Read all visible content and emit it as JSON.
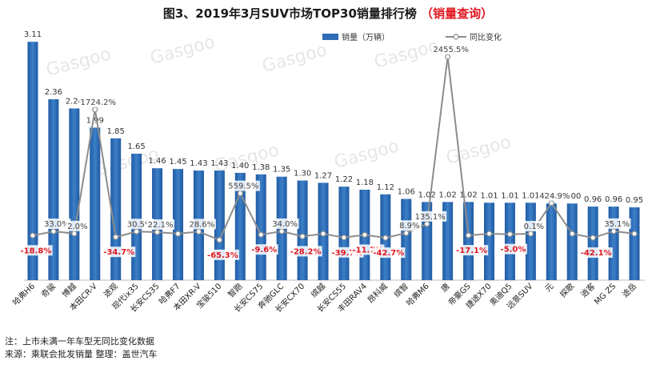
{
  "chart_data": {
    "type": "bar",
    "title": "图3、2019年3月SUV市场TOP30销量排行榜",
    "title_suffix": "（销量查询）",
    "title_color": "#1a1a1a",
    "title_suffix_color": "#e0161f",
    "legend": {
      "bar_label": "销量（万辆）",
      "line_label": "同比变化",
      "placement": "top-right"
    },
    "categories": [
      "哈弗H6",
      "奇骏",
      "博越",
      "本田CR-V",
      "途观",
      "现代ix35",
      "长安CS35",
      "哈弗F7",
      "本田XR-V",
      "宝骏510",
      "智跑",
      "长安CS75",
      "奔驰GLC",
      "长安CX70",
      "缤越",
      "长安CS55",
      "丰田RAV4",
      "昂科威",
      "缤智",
      "哈弗M6",
      "唐",
      "帝豪GS",
      "捷途X70",
      "奥迪Q5",
      "远景SUV",
      "元",
      "探歌",
      "逍客",
      "MG ZS",
      "途岳"
    ],
    "series": [
      {
        "name": "销量（万辆）",
        "values": [
          3.11,
          2.36,
          2.24,
          1.99,
          1.85,
          1.65,
          1.46,
          1.45,
          1.43,
          1.43,
          1.4,
          1.38,
          1.35,
          1.3,
          1.27,
          1.22,
          1.18,
          1.12,
          1.06,
          1.02,
          1.02,
          1.02,
          1.01,
          1.01,
          1.01,
          1.0,
          1.0,
          0.96,
          0.96,
          0.95
        ]
      },
      {
        "name": "同比变化",
        "values": [
          -18.8,
          33.0,
          2.0,
          1724.2,
          -34.7,
          30.5,
          22.1,
          null,
          28.6,
          -65.3,
          559.5,
          -9.6,
          34.0,
          -28.2,
          null,
          -39.7,
          -11.7,
          -42.7,
          8.9,
          135.1,
          2455.5,
          -17.1,
          null,
          -5.0,
          0.1,
          424.9,
          null,
          -42.1,
          35.1,
          null
        ]
      }
    ],
    "bar_labels": [
      "3.11",
      "2.36",
      "2.24",
      "1.99",
      "1.85",
      "1.65",
      "1.46",
      "1.45",
      "1.43",
      "1.43",
      "1.40",
      "1.38",
      "1.35",
      "1.30",
      "1.27",
      "1.22",
      "1.18",
      "1.12",
      "1.06",
      "1.02",
      "1.02",
      "1.02",
      "1.01",
      "1.01",
      "1.01",
      "1.00",
      "1.00",
      "0.96",
      "0.96",
      "0.95"
    ],
    "line_labels": [
      "-18.8%",
      "33.0%",
      "2.0%",
      "1724.2%",
      "-34.7%",
      "30.5%",
      "22.1%",
      "",
      "28.6%",
      "-65.3%",
      "559.5%",
      "-9.6%",
      "34.0%",
      "-28.2%",
      "",
      "-39.7%",
      "-11.7%",
      "-42.7%",
      "8.9%",
      "135.1%",
      "2455.5%",
      "-17.1%",
      "",
      "-5.0%",
      "0.1%",
      "424.9%",
      "",
      "-42.1%",
      "35.1%",
      ""
    ],
    "y_left_lim": [
      0,
      3.3
    ],
    "colors": {
      "bar": "#2e6cb5",
      "bar_light": "#5b9ad8",
      "line": "#8c8c8c",
      "negative": "#e0161f",
      "positive": "#404040"
    }
  },
  "watermark": "盖世汽车 gasgoo auto.gasgoo.com",
  "footer": {
    "note": "注：上市未满一年车型无同比变化数据",
    "source": "来源：乘联会批发销量 整理：盖世汽车"
  }
}
